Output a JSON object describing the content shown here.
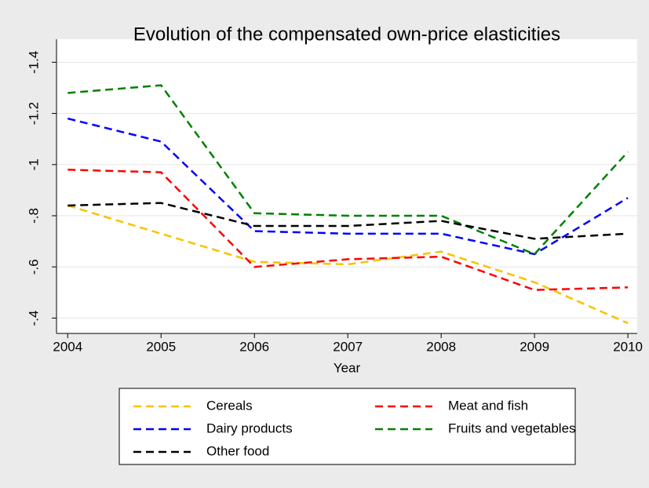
{
  "chart_data": {
    "type": "line",
    "title": "Evolution of the compensated own-price elasticities",
    "x_label": "Year",
    "x": [
      2004,
      2005,
      2006,
      2007,
      2008,
      2009,
      2010
    ],
    "xlim": [
      2003.88,
      2010.1
    ],
    "xticks": [
      2004,
      2005,
      2006,
      2007,
      2008,
      2009,
      2010
    ],
    "ylim": [
      -0.34,
      -1.49
    ],
    "yticks": [
      -1.4,
      -1.2,
      -1,
      {
        "value": -0.8,
        "label": "-.8"
      },
      {
        "value": -0.6,
        "label": "-.6"
      },
      {
        "value": -0.4,
        "label": "-.4"
      }
    ],
    "grid": true,
    "series": [
      {
        "name": "Cereals",
        "color": "#f5c400",
        "values": [
          -0.84,
          -0.73,
          -0.62,
          -0.61,
          -0.66,
          -0.54,
          -0.38
        ]
      },
      {
        "name": "Meat and fish",
        "color": "#ff0000",
        "values": [
          -0.98,
          -0.97,
          -0.6,
          -0.63,
          -0.64,
          -0.51,
          -0.52
        ]
      },
      {
        "name": "Dairy products",
        "color": "#0000ff",
        "values": [
          -1.18,
          -1.09,
          -0.74,
          -0.73,
          -0.73,
          -0.65,
          -0.87
        ]
      },
      {
        "name": "Fruits and vegetables",
        "color": "#008000",
        "values": [
          -1.28,
          -1.31,
          -0.81,
          -0.8,
          -0.8,
          -0.65,
          -1.05
        ]
      },
      {
        "name": "Other food",
        "color": "#000000",
        "values": [
          -0.84,
          -0.85,
          -0.76,
          -0.76,
          -0.78,
          -0.71,
          -0.73
        ]
      }
    ]
  }
}
